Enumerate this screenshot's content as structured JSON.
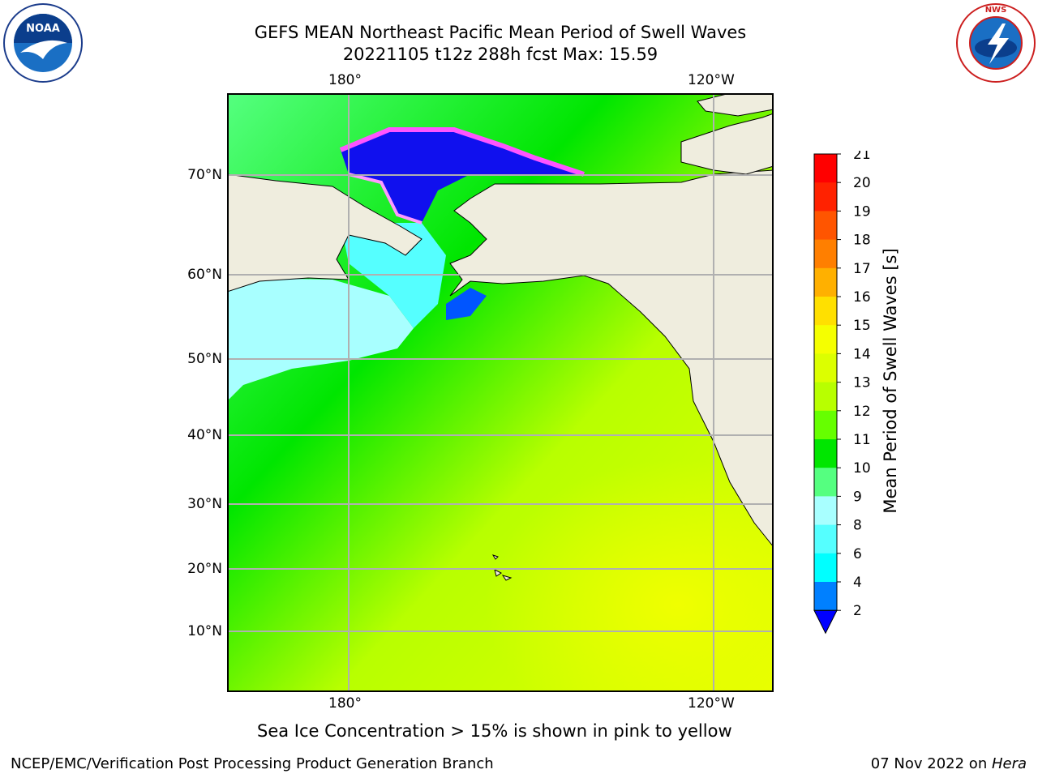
{
  "title_line1": "GEFS MEAN Northeast Pacific Mean Period of Swell Waves",
  "title_line2": "20221105 t12z 288h fcst   Max: 15.59",
  "lon_labels": [
    "180°",
    "120°W"
  ],
  "lat_labels": [
    "70°N",
    "60°N",
    "50°N",
    "40°N",
    "30°N",
    "20°N",
    "10°N"
  ],
  "colorbar": {
    "label": "Mean Period of Swell Waves [s]",
    "ticks": [
      "21",
      "20",
      "19",
      "18",
      "17",
      "16",
      "15",
      "14",
      "13",
      "12",
      "11",
      "10",
      "9",
      "8",
      "6",
      "4",
      "2"
    ],
    "colors": [
      "#ff0000",
      "#ff2200",
      "#ff5500",
      "#ff7f00",
      "#ffb000",
      "#ffe000",
      "#f5ff00",
      "#dcff00",
      "#b8ff00",
      "#66ff00",
      "#00e600",
      "#55ff80",
      "#a8ffff",
      "#55ffff",
      "#00ffff",
      "#0080ff",
      "#0000ff"
    ]
  },
  "note": "Sea Ice Concentration > 15% is shown in pink to yellow",
  "credit": "NCEP/EMC/Verification Post Processing Product Generation Branch",
  "stamp_date": "07 Nov 2022 on ",
  "stamp_host": "Hera",
  "logos": {
    "left": "NOAA",
    "right": "NATIONAL WEATHER SERVICE"
  },
  "colors": {
    "land": "#efedde",
    "grid": "#b0b0b0",
    "ice": "#ff55ff"
  }
}
